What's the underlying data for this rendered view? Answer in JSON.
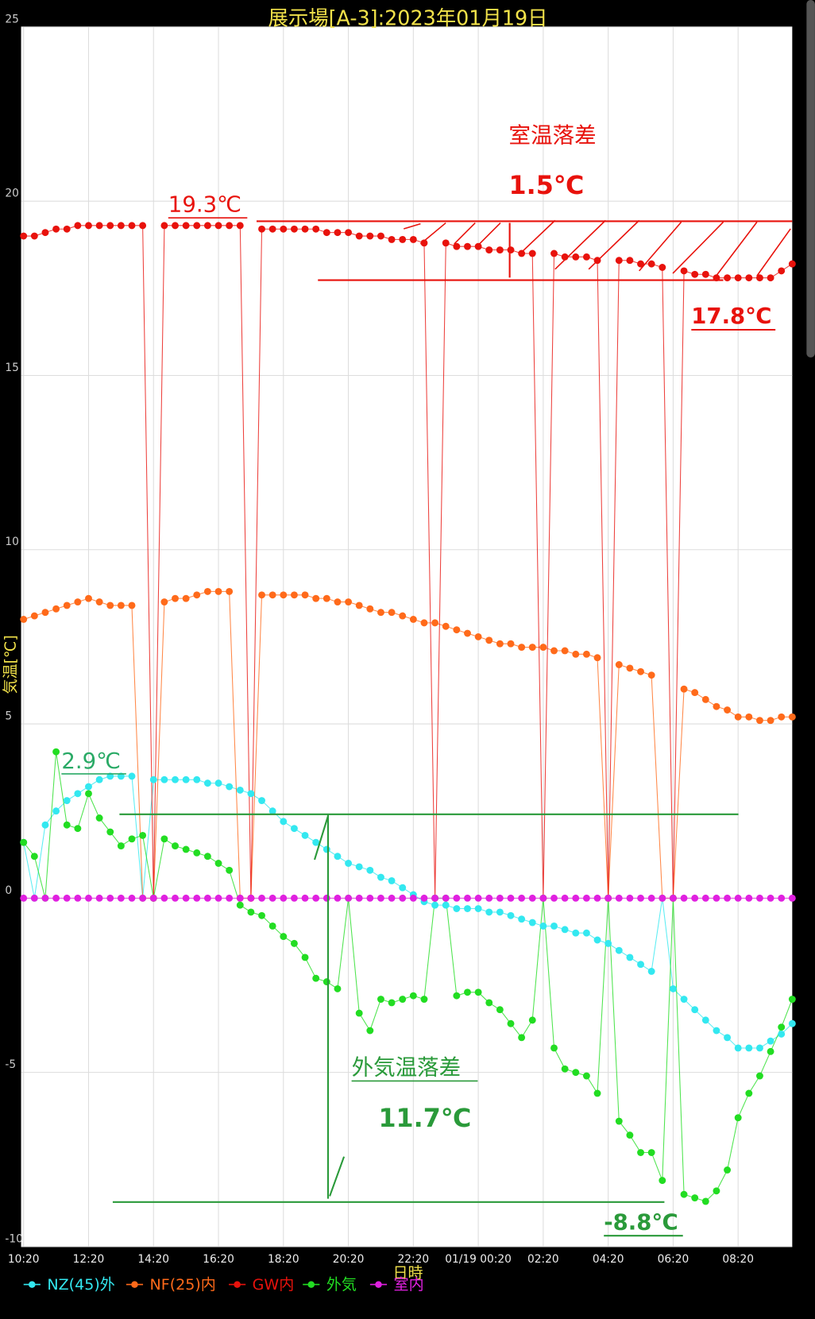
{
  "chart_data": {
    "type": "line",
    "title": "展示場[A-3]:2023年01月19日",
    "x_label": "日時",
    "y_label": "気温[℃]",
    "x": [
      0,
      20,
      40,
      60,
      80,
      100,
      120,
      140,
      160,
      180,
      200,
      220,
      240,
      260,
      280,
      300,
      320,
      340,
      360,
      380,
      400,
      420,
      440,
      460,
      480,
      500,
      520,
      540,
      560,
      580,
      600,
      620,
      640,
      660,
      680,
      700,
      720,
      740,
      760,
      780,
      800,
      820,
      840,
      860,
      880,
      900,
      920,
      940,
      960,
      980,
      1000,
      1020,
      1040,
      1060,
      1080,
      1100,
      1120,
      1140,
      1160,
      1180,
      1200,
      1220,
      1240,
      1260,
      1280,
      1300,
      1320,
      1340,
      1360,
      1380,
      1400,
      1420
    ],
    "xlim": [
      0,
      1420
    ],
    "xticks": [
      {
        "value": 0,
        "label": "10:20"
      },
      {
        "value": 120,
        "label": "12:20"
      },
      {
        "value": 240,
        "label": "14:20"
      },
      {
        "value": 360,
        "label": "16:20"
      },
      {
        "value": 480,
        "label": "18:20"
      },
      {
        "value": 600,
        "label": "20:20"
      },
      {
        "value": 720,
        "label": "22:20"
      },
      {
        "value": 840,
        "label": "01/19 00:20"
      },
      {
        "value": 960,
        "label": "02:20"
      },
      {
        "value": 1080,
        "label": "04:20"
      },
      {
        "value": 1200,
        "label": "06:20"
      },
      {
        "value": 1320,
        "label": "08:20"
      }
    ],
    "ylim": [
      -10,
      25
    ],
    "yticks": [
      -10,
      -5,
      0,
      5,
      10,
      15,
      20,
      25
    ],
    "grid": true,
    "legend": "bottom-left",
    "series": [
      {
        "name": "NZ(45)外",
        "color": "#33e8f0",
        "values": [
          1.6,
          0,
          2.1,
          2.5,
          2.8,
          3.0,
          3.2,
          3.4,
          3.5,
          3.5,
          3.5,
          0,
          3.4,
          3.4,
          3.4,
          3.4,
          3.4,
          3.3,
          3.3,
          3.2,
          3.1,
          3.0,
          2.8,
          2.5,
          2.2,
          2.0,
          1.8,
          1.6,
          1.4,
          1.2,
          1.0,
          0.9,
          0.8,
          0.6,
          0.5,
          0.3,
          0.1,
          -0.1,
          -0.2,
          -0.2,
          -0.3,
          -0.3,
          -0.3,
          -0.4,
          -0.4,
          -0.5,
          -0.6,
          -0.7,
          -0.8,
          -0.8,
          -0.9,
          -1.0,
          -1.0,
          -1.2,
          -1.3,
          -1.5,
          -1.7,
          -1.9,
          -2.1,
          0,
          -2.6,
          -2.9,
          -3.2,
          -3.5,
          -3.8,
          -4.0,
          -4.3,
          -4.3,
          -4.3,
          -4.1,
          -3.9,
          -3.6
        ]
      },
      {
        "name": "NF(25)内",
        "color": "#ff6a1a",
        "values": [
          8.0,
          8.1,
          8.2,
          8.3,
          8.4,
          8.5,
          8.6,
          8.5,
          8.4,
          8.4,
          8.4,
          0,
          0,
          8.5,
          8.6,
          8.6,
          8.7,
          8.8,
          8.8,
          8.8,
          0,
          0,
          8.7,
          8.7,
          8.7,
          8.7,
          8.7,
          8.6,
          8.6,
          8.5,
          8.5,
          8.4,
          8.3,
          8.2,
          8.2,
          8.1,
          8.0,
          7.9,
          7.9,
          7.8,
          7.7,
          7.6,
          7.5,
          7.4,
          7.3,
          7.3,
          7.2,
          7.2,
          7.2,
          7.1,
          7.1,
          7.0,
          7.0,
          6.9,
          0,
          6.7,
          6.6,
          6.5,
          6.4,
          0,
          0,
          6.0,
          5.9,
          5.7,
          5.5,
          5.4,
          5.2,
          5.2,
          5.1,
          5.1,
          5.2,
          5.2
        ]
      },
      {
        "name": "GW内",
        "color": "#e8120c",
        "values": [
          19.0,
          19.0,
          19.1,
          19.2,
          19.2,
          19.3,
          19.3,
          19.3,
          19.3,
          19.3,
          19.3,
          19.3,
          0,
          19.3,
          19.3,
          19.3,
          19.3,
          19.3,
          19.3,
          19.3,
          19.3,
          0,
          19.2,
          19.2,
          19.2,
          19.2,
          19.2,
          19.2,
          19.1,
          19.1,
          19.1,
          19.0,
          19.0,
          19.0,
          18.9,
          18.9,
          18.9,
          18.8,
          0,
          18.8,
          18.7,
          18.7,
          18.7,
          18.6,
          18.6,
          18.6,
          18.5,
          18.5,
          0,
          18.5,
          18.4,
          18.4,
          18.4,
          18.3,
          0,
          18.3,
          18.3,
          18.2,
          18.2,
          18.1,
          0,
          18.0,
          17.9,
          17.9,
          17.8,
          17.8,
          17.8,
          17.8,
          17.8,
          17.8,
          18.0,
          18.2
        ]
      },
      {
        "name": "外気",
        "color": "#22dd22",
        "values": [
          1.6,
          1.2,
          0,
          4.2,
          2.1,
          2.0,
          3.0,
          2.3,
          1.9,
          1.5,
          1.7,
          1.8,
          0,
          1.7,
          1.5,
          1.4,
          1.3,
          1.2,
          1.0,
          0.8,
          -0.2,
          -0.4,
          -0.5,
          -0.8,
          -1.1,
          -1.3,
          -1.7,
          -2.3,
          -2.4,
          -2.6,
          0,
          -3.3,
          -3.8,
          -2.9,
          -3.0,
          -2.9,
          -2.8,
          -2.9,
          0,
          0,
          -2.8,
          -2.7,
          -2.7,
          -3.0,
          -3.2,
          -3.6,
          -4.0,
          -3.5,
          0,
          -4.3,
          -4.9,
          -5.0,
          -5.1,
          -5.6,
          0,
          -6.4,
          -6.8,
          -7.3,
          -7.3,
          -8.1,
          0,
          -8.5,
          -8.6,
          -8.7,
          -8.4,
          -7.8,
          -6.3,
          -5.6,
          -5.1,
          -4.4,
          -3.7,
          -2.9
        ]
      },
      {
        "name": "室内",
        "color": "#e020e0",
        "values": [
          0,
          0,
          0,
          0,
          0,
          0,
          0,
          0,
          0,
          0,
          0,
          0,
          0,
          0,
          0,
          0,
          0,
          0,
          0,
          0,
          0,
          0,
          0,
          0,
          0,
          0,
          0,
          0,
          0,
          0,
          0,
          0,
          0,
          0,
          0,
          0,
          0,
          0,
          0,
          0,
          0,
          0,
          0,
          0,
          0,
          0,
          0,
          0,
          0,
          0,
          0,
          0,
          0,
          0,
          0,
          0,
          0,
          0,
          0,
          0,
          0,
          0,
          0,
          0,
          0,
          0,
          0,
          0,
          0,
          0,
          0,
          0
        ]
      }
    ],
    "annotations": [
      "室温落差",
      "1.5℃",
      "19.3℃",
      "17.8℃",
      "2.9℃",
      "外気温落差",
      "11.7℃",
      "-8.8℃"
    ]
  }
}
